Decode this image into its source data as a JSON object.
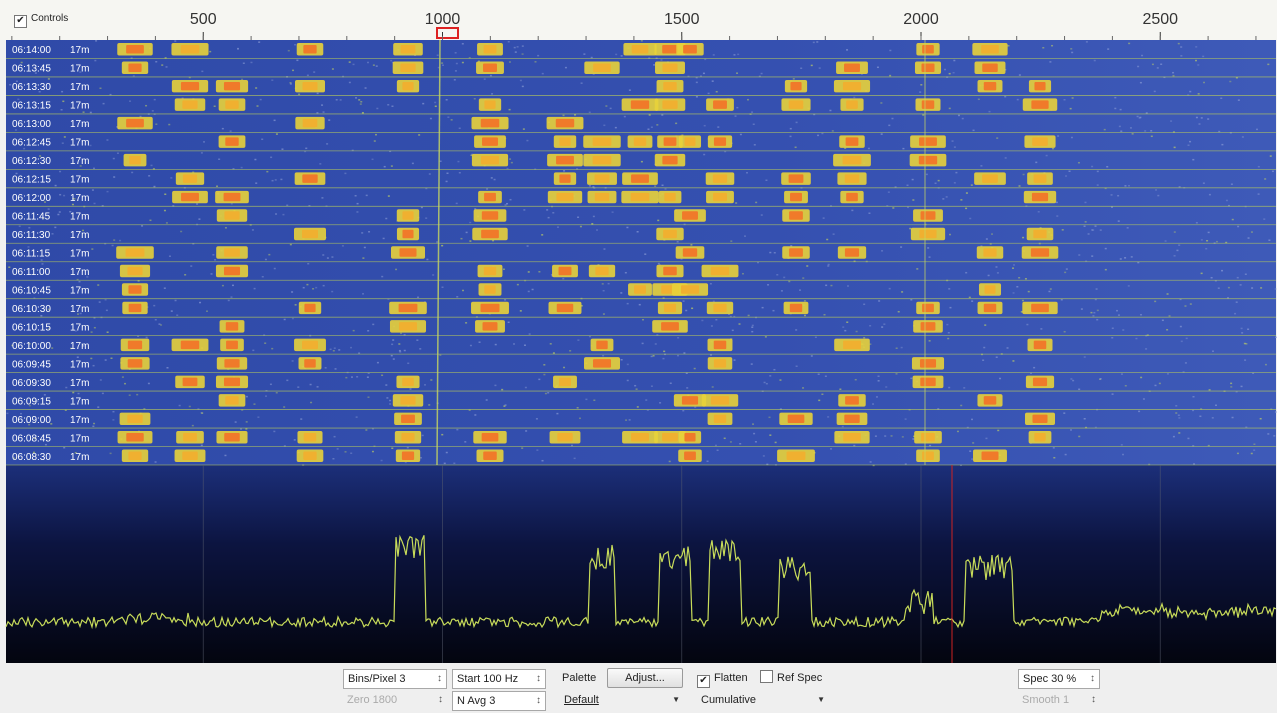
{
  "top_bar": {
    "controls_checkbox": "Controls"
  },
  "frequency_axis": {
    "ticks": [
      500,
      1000,
      1500,
      2000,
      2500
    ]
  },
  "waterfall": {
    "rows": [
      {
        "time": "06:14:00",
        "band": "17m"
      },
      {
        "time": "06:13:45",
        "band": "17m"
      },
      {
        "time": "06:13:30",
        "band": "17m"
      },
      {
        "time": "06:13:15",
        "band": "17m"
      },
      {
        "time": "06:13:00",
        "band": "17m"
      },
      {
        "time": "06:12:45",
        "band": "17m"
      },
      {
        "time": "06:12:30",
        "band": "17m"
      },
      {
        "time": "06:12:15",
        "band": "17m"
      },
      {
        "time": "06:12:00",
        "band": "17m"
      },
      {
        "time": "06:11:45",
        "band": "17m"
      },
      {
        "time": "06:11:30",
        "band": "17m"
      },
      {
        "time": "06:11:15",
        "band": "17m"
      },
      {
        "time": "06:11:00",
        "band": "17m"
      },
      {
        "time": "06:10:45",
        "band": "17m"
      },
      {
        "time": "06:10:30",
        "band": "17m"
      },
      {
        "time": "06:10:15",
        "band": "17m"
      },
      {
        "time": "06:10:00",
        "band": "17m"
      },
      {
        "time": "06:09:45",
        "band": "17m"
      },
      {
        "time": "06:09:30",
        "band": "17m"
      },
      {
        "time": "06:09:15",
        "band": "17m"
      },
      {
        "time": "06:09:00",
        "band": "17m"
      },
      {
        "time": "06:08:45",
        "band": "17m"
      },
      {
        "time": "06:08:30",
        "band": "17m"
      }
    ]
  },
  "controls": {
    "bins_per_pixel": "Bins/Pixel 3",
    "start": "Start 100 Hz",
    "palette_label": "Palette",
    "adjust_button": "Adjust...",
    "flatten": "Flatten",
    "ref_spec": "Ref Spec",
    "spec": "Spec 30 %",
    "zero": "Zero 1800",
    "n_avg": "N Avg 3",
    "palette": "Default",
    "spectrum_mode": "Cumulative",
    "smooth": "Smooth 1"
  }
}
